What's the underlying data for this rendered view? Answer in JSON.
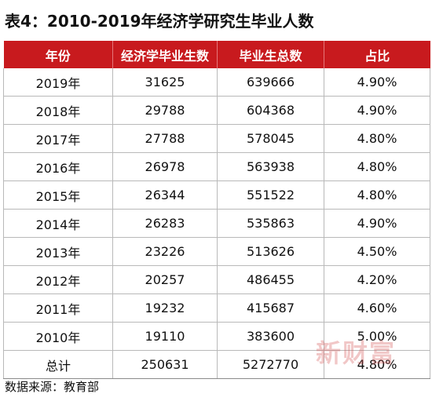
{
  "chart_data": {
    "type": "table",
    "title": "表4：2010-2019年经济学研究生毕业人数",
    "columns": [
      "年份",
      "经济学毕业生数",
      "毕业生总数",
      "占比"
    ],
    "rows": [
      [
        "2019年",
        "31625",
        "639666",
        "4.90%"
      ],
      [
        "2018年",
        "29788",
        "604368",
        "4.90%"
      ],
      [
        "2017年",
        "27788",
        "578045",
        "4.80%"
      ],
      [
        "2016年",
        "26978",
        "563938",
        "4.80%"
      ],
      [
        "2015年",
        "26344",
        "551522",
        "4.80%"
      ],
      [
        "2014年",
        "26283",
        "535863",
        "4.90%"
      ],
      [
        "2013年",
        "23226",
        "513626",
        "4.50%"
      ],
      [
        "2012年",
        "20257",
        "486455",
        "4.20%"
      ],
      [
        "2011年",
        "19232",
        "415687",
        "4.60%"
      ],
      [
        "2010年",
        "19110",
        "383600",
        "5.00%"
      ]
    ],
    "total": [
      "总计",
      "250631",
      "5272770",
      "4.80%"
    ],
    "source": "数据来源：教育部",
    "header_color": "#c81a1e"
  },
  "watermark": "新财富"
}
